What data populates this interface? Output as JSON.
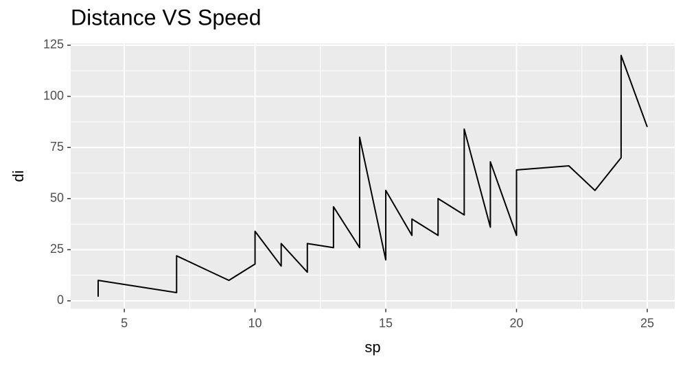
{
  "chart_data": {
    "type": "line",
    "title": "Distance VS Speed",
    "x_label": "sp",
    "y_label": "di",
    "x": [
      4,
      4,
      7,
      7,
      8,
      9,
      10,
      10,
      10,
      11,
      11,
      12,
      12,
      12,
      12,
      13,
      13,
      13,
      13,
      14,
      14,
      14,
      14,
      15,
      15,
      15,
      16,
      16,
      17,
      17,
      17,
      18,
      18,
      18,
      18,
      19,
      19,
      19,
      20,
      20,
      20,
      20,
      20,
      22,
      23,
      24,
      24,
      24,
      24,
      25
    ],
    "series": [
      {
        "name": "di",
        "color": "#000000",
        "values": [
          2,
          10,
          4,
          22,
          16,
          10,
          18,
          26,
          34,
          17,
          28,
          14,
          20,
          24,
          28,
          26,
          34,
          34,
          46,
          26,
          36,
          60,
          80,
          20,
          26,
          54,
          32,
          40,
          32,
          40,
          50,
          42,
          56,
          76,
          84,
          36,
          46,
          68,
          32,
          48,
          52,
          56,
          64,
          66,
          54,
          70,
          92,
          93,
          120,
          85
        ]
      }
    ],
    "xlim": [
      2.95,
      26.05
    ],
    "ylim": [
      -3.9,
      125.9
    ],
    "xticks": [
      5,
      10,
      15,
      20,
      25
    ],
    "yticks": [
      0,
      25,
      50,
      75,
      100,
      125
    ],
    "grid": true
  }
}
